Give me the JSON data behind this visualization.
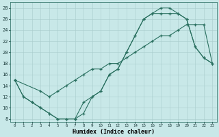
{
  "xlabel": "Humidex (Indice chaleur)",
  "bg_color": "#c8e8e8",
  "grid_color": "#a8cccc",
  "line_color": "#2a7060",
  "xlim": [
    -0.5,
    23.5
  ],
  "ylim": [
    7.5,
    29.0
  ],
  "yticks": [
    8,
    10,
    12,
    14,
    16,
    18,
    20,
    22,
    24,
    26,
    28
  ],
  "xticks": [
    0,
    1,
    2,
    3,
    4,
    5,
    6,
    7,
    8,
    9,
    10,
    11,
    12,
    13,
    14,
    15,
    16,
    17,
    18,
    19,
    20,
    21,
    22,
    23
  ],
  "curve1_x": [
    0,
    1,
    2,
    3,
    4,
    5,
    6,
    7,
    8,
    9,
    10,
    11,
    12,
    13,
    14,
    15,
    16,
    17,
    18,
    19,
    20,
    21,
    22,
    23
  ],
  "curve1_y": [
    15,
    12,
    11,
    10,
    9,
    8,
    8,
    8,
    11,
    12,
    13,
    16,
    17,
    20,
    23,
    26,
    27,
    28,
    28,
    27,
    26,
    21,
    19,
    18
  ],
  "curve2_x": [
    0,
    3,
    4,
    5,
    6,
    7,
    8,
    9,
    10,
    11,
    12,
    13,
    14,
    15,
    16,
    17,
    18,
    19,
    20,
    21,
    22,
    23
  ],
  "curve2_y": [
    15,
    13,
    12,
    13,
    14,
    15,
    16,
    17,
    17,
    18,
    18,
    19,
    20,
    21,
    22,
    23,
    23,
    24,
    25,
    25,
    25,
    18
  ],
  "curve3_x": [
    0,
    1,
    2,
    3,
    4,
    5,
    6,
    7,
    8,
    9,
    10,
    11,
    12,
    13,
    14,
    15,
    16,
    17,
    18,
    19,
    20,
    21,
    22,
    23
  ],
  "curve3_y": [
    15,
    12,
    11,
    10,
    9,
    8,
    8,
    8,
    9,
    12,
    13,
    16,
    17,
    20,
    23,
    26,
    27,
    27,
    27,
    27,
    26,
    21,
    19,
    18
  ]
}
